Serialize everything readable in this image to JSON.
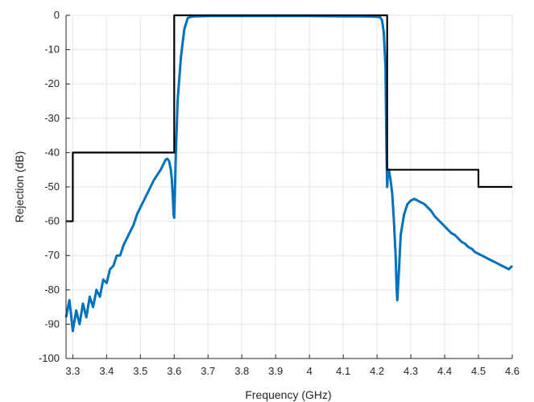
{
  "chart_data": {
    "type": "line",
    "xlabel": "Frequency (GHz)",
    "ylabel": "Rejection (dB)",
    "xlim": [
      3.28,
      4.6
    ],
    "ylim": [
      -100,
      0
    ],
    "xticks": [
      3.3,
      3.4,
      3.5,
      3.6,
      3.7,
      3.8,
      3.9,
      4,
      4.1,
      4.2,
      4.3,
      4.4,
      4.5,
      4.6
    ],
    "xtick_labels": [
      "3.3",
      "3.4",
      "3.5",
      "3.6",
      "3.7",
      "3.8",
      "3.9",
      "4",
      "4.1",
      "4.2",
      "4.3",
      "4.4",
      "4.5",
      "4.6"
    ],
    "yticks": [
      0,
      -10,
      -20,
      -30,
      -40,
      -50,
      -60,
      -70,
      -80,
      -90,
      -100
    ],
    "ytick_labels": [
      "0",
      "-10",
      "-20",
      "-30",
      "-40",
      "-50",
      "-60",
      "-70",
      "-80",
      "-90",
      "-100"
    ],
    "grid": true,
    "colors": {
      "response": "#0072BD",
      "mask": "#000000",
      "grid": "#e5e5e5",
      "axis": "#262626"
    },
    "series": [
      {
        "color": "#0072BD",
        "style": "line",
        "x": [
          3.28,
          3.29,
          3.3,
          3.31,
          3.32,
          3.33,
          3.34,
          3.35,
          3.36,
          3.37,
          3.38,
          3.39,
          3.4,
          3.41,
          3.42,
          3.43,
          3.44,
          3.45,
          3.46,
          3.47,
          3.48,
          3.49,
          3.5,
          3.51,
          3.52,
          3.53,
          3.54,
          3.55,
          3.56,
          3.57,
          3.575,
          3.58,
          3.585,
          3.59,
          3.593,
          3.596,
          3.598,
          3.6,
          3.605,
          3.61,
          3.62,
          3.63,
          3.64,
          3.65,
          3.66,
          3.7,
          3.8,
          3.9,
          4.0,
          4.1,
          4.15,
          4.2,
          4.21,
          4.215,
          4.22,
          4.225,
          4.228,
          4.23,
          4.232,
          4.235,
          4.24,
          4.245,
          4.25,
          4.255,
          4.258,
          4.26,
          4.265,
          4.27,
          4.28,
          4.29,
          4.3,
          4.31,
          4.32,
          4.33,
          4.34,
          4.35,
          4.36,
          4.37,
          4.38,
          4.39,
          4.4,
          4.41,
          4.42,
          4.43,
          4.44,
          4.45,
          4.46,
          4.47,
          4.48,
          4.49,
          4.5,
          4.51,
          4.52,
          4.53,
          4.54,
          4.55,
          4.56,
          4.57,
          4.58,
          4.59,
          4.6
        ],
        "y": [
          -88,
          -83,
          -92,
          -86,
          -90,
          -84,
          -88,
          -82,
          -85,
          -80,
          -82,
          -77,
          -78,
          -74,
          -73,
          -70,
          -70,
          -67,
          -65,
          -63,
          -61,
          -58,
          -56,
          -54,
          -52,
          -50,
          -48,
          -46.5,
          -45,
          -43,
          -42,
          -41.8,
          -42.5,
          -45,
          -48,
          -53,
          -58,
          -59,
          -40,
          -25,
          -12,
          -4,
          -0.8,
          -0.4,
          -0.3,
          -0.2,
          -0.2,
          -0.2,
          -0.2,
          -0.3,
          -0.3,
          -0.4,
          -0.6,
          -1.5,
          -5,
          -15,
          -40,
          -50,
          -46,
          -45,
          -48,
          -52,
          -60,
          -70,
          -80,
          -83,
          -74,
          -64,
          -58,
          -55,
          -54,
          -53.5,
          -54,
          -54.5,
          -55,
          -56,
          -57,
          -58.5,
          -59.5,
          -60.5,
          -61.5,
          -62.5,
          -63.5,
          -64,
          -65,
          -66,
          -66.5,
          -67.5,
          -68,
          -69,
          -69.5,
          -70,
          -70.5,
          -71,
          -71.5,
          -72,
          -72.5,
          -73,
          -73.5,
          -74,
          -73
        ]
      },
      {
        "color": "#000000",
        "style": "line",
        "x": [
          3.28,
          3.3,
          3.3,
          3.6,
          3.6,
          4.23,
          4.23,
          4.5,
          4.5,
          4.6
        ],
        "y": [
          -60,
          -60,
          -40,
          -40,
          0,
          0,
          -45,
          -45,
          -50,
          -50
        ]
      }
    ]
  }
}
